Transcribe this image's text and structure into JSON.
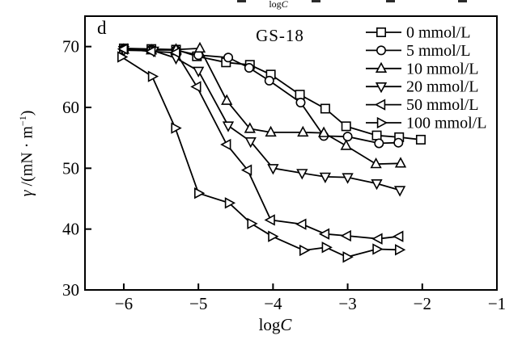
{
  "figure": {
    "panel_letter": "d",
    "title": "GS-18",
    "top_axis_label": {
      "prefix": "log",
      "symbol": "C"
    },
    "x_axis_label": {
      "prefix": "log",
      "symbol": "C"
    },
    "y_axis_label": {
      "symbol": "γ",
      "mid": " /(mN · m",
      "sup": "−1",
      "end": ")"
    }
  },
  "colors": {
    "ink": "#000000",
    "background": "#ffffff"
  },
  "chart_data": {
    "type": "line",
    "title": "GS-18",
    "xlabel": "logC",
    "ylabel": "γ/(mN·m⁻¹)",
    "xlim": [
      -6.52,
      -1.0
    ],
    "ylim": [
      30,
      75
    ],
    "x_ticks": [
      -6,
      -5,
      -4,
      -3,
      -2,
      -1
    ],
    "x_tick_labels": [
      "−6",
      "−5",
      "−4",
      "−3",
      "−2",
      "−1"
    ],
    "y_ticks": [
      70,
      60,
      50,
      40,
      30
    ],
    "y_tick_labels": [
      "70",
      "60",
      "50",
      "40",
      "30"
    ],
    "grid": false,
    "legend_position": "top-right",
    "series": [
      {
        "name": "0 mmol/L",
        "marker": "square",
        "x": [
          -6.0,
          -5.63,
          -5.3,
          -5.02,
          -4.63,
          -4.31,
          -4.03,
          -3.64,
          -3.3,
          -3.02,
          -2.61,
          -2.31,
          -2.02
        ],
        "y": [
          69.7,
          69.6,
          69.5,
          68.4,
          67.4,
          67.0,
          65.4,
          62.1,
          59.8,
          56.9,
          55.4,
          55.1,
          54.7
        ]
      },
      {
        "name": "5 mmol/L",
        "marker": "circle",
        "x": [
          -6.0,
          -5.63,
          -5.3,
          -5.0,
          -4.6,
          -4.32,
          -4.05,
          -3.63,
          -3.32,
          -3.0,
          -2.58,
          -2.32
        ],
        "y": [
          69.6,
          69.5,
          69.4,
          68.6,
          68.2,
          66.5,
          64.4,
          60.8,
          55.3,
          55.2,
          54.1,
          54.2
        ]
      },
      {
        "name": "10 mmol/L",
        "marker": "triangle-up",
        "x": [
          -6.0,
          -5.63,
          -5.3,
          -4.98,
          -4.62,
          -4.31,
          -4.03,
          -3.6,
          -3.32,
          -3.02,
          -2.62,
          -2.29
        ],
        "y": [
          69.5,
          69.4,
          69.5,
          69.7,
          61.1,
          56.5,
          55.9,
          55.9,
          55.8,
          53.7,
          50.7,
          50.8
        ]
      },
      {
        "name": "20 mmol/L",
        "marker": "triangle-down",
        "x": [
          -6.0,
          -5.6,
          -5.3,
          -5.0,
          -4.6,
          -4.3,
          -4.0,
          -3.61,
          -3.3,
          -3.0,
          -2.61,
          -2.3
        ],
        "y": [
          69.4,
          69.3,
          68.1,
          66.0,
          57.0,
          54.4,
          50.0,
          49.2,
          48.6,
          48.5,
          47.5,
          46.4
        ]
      },
      {
        "name": "50 mmol/L",
        "marker": "triangle-left",
        "x": [
          -6.0,
          -5.63,
          -5.3,
          -5.02,
          -4.62,
          -4.34,
          -4.03,
          -3.61,
          -3.3,
          -3.01,
          -2.59,
          -2.31
        ],
        "y": [
          69.6,
          69.2,
          69.0,
          63.4,
          53.9,
          49.7,
          41.5,
          40.8,
          39.2,
          38.9,
          38.4,
          38.8
        ]
      },
      {
        "name": "100 mmol/L",
        "marker": "triangle-right",
        "x": [
          -6.03,
          -5.62,
          -5.31,
          -5.0,
          -4.59,
          -4.29,
          -4.01,
          -3.59,
          -3.29,
          -3.01,
          -2.61,
          -2.31
        ],
        "y": [
          68.3,
          65.1,
          56.6,
          45.9,
          44.3,
          40.9,
          38.8,
          36.5,
          37.0,
          35.4,
          36.7,
          36.6
        ]
      }
    ]
  }
}
